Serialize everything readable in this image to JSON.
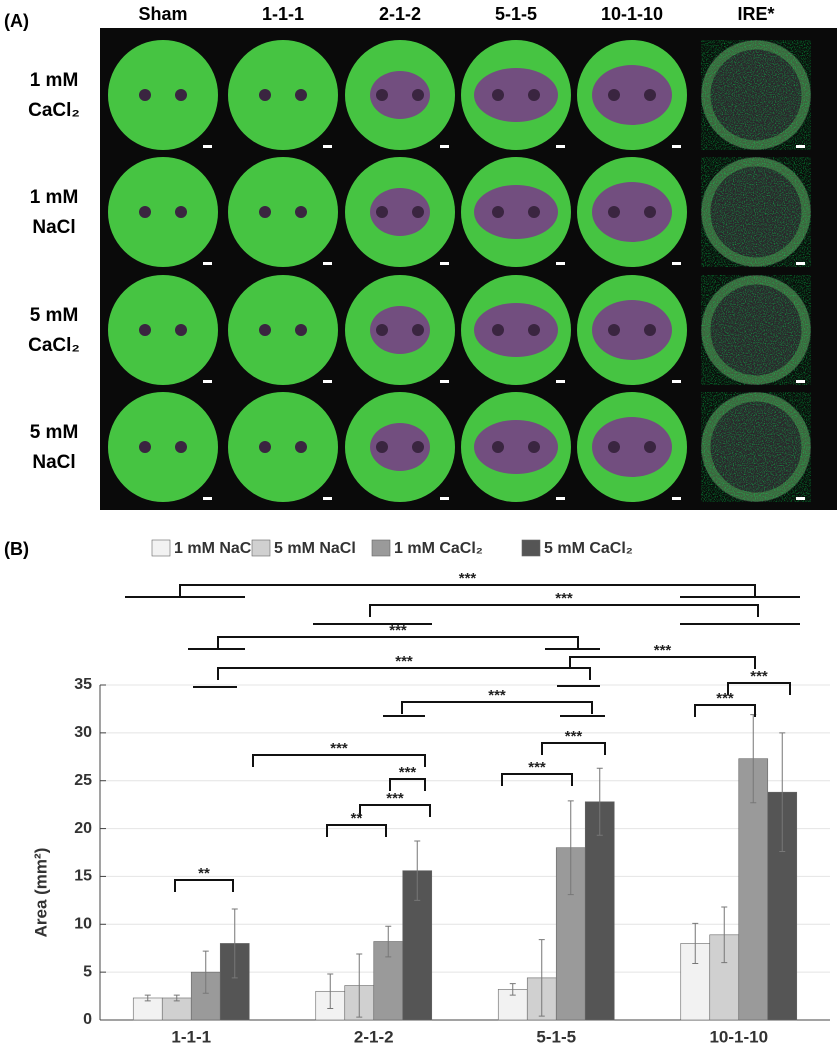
{
  "panel_a": {
    "label": "(A)",
    "columns": [
      "Sham",
      "1-1-1",
      "2-1-2",
      "5-1-5",
      "10-1-10",
      "IRE*"
    ],
    "rows": [
      [
        "1 mM",
        "CaCl₂"
      ],
      [
        "1 mM",
        "NaCl"
      ],
      [
        "5 mM",
        "CaCl₂"
      ],
      [
        "5 mM",
        "NaCl"
      ]
    ]
  },
  "chart_data": {
    "type": "bar",
    "panel_label": "(B)",
    "y_label": "Area (mm²)",
    "categories": [
      "1-1-1",
      "2-1-2",
      "5-1-5",
      "10-1-10"
    ],
    "series": [
      {
        "name": "1 mM NaCl",
        "color": "#f2f2f2",
        "values": [
          2.3,
          3.0,
          3.2,
          8.0
        ],
        "errors": [
          0.3,
          1.8,
          0.6,
          2.1
        ]
      },
      {
        "name": "5 mM NaCl",
        "color": "#d0d0d0",
        "values": [
          2.3,
          3.6,
          4.4,
          8.9
        ],
        "errors": [
          0.3,
          3.3,
          4.0,
          2.9
        ]
      },
      {
        "name": "1 mM CaCl₂",
        "color": "#9a9a9a",
        "values": [
          5.0,
          8.2,
          18.0,
          27.3
        ],
        "errors": [
          2.2,
          1.6,
          4.9,
          4.6
        ]
      },
      {
        "name": "5 mM CaCl₂",
        "color": "#555555",
        "values": [
          8.0,
          15.6,
          22.8,
          23.8
        ],
        "errors": [
          3.6,
          3.1,
          3.5,
          6.2
        ]
      }
    ],
    "ylim": [
      0,
      35
    ],
    "yticks": [
      0,
      5,
      10,
      15,
      20,
      25,
      30,
      35
    ],
    "grid": true,
    "annotations": [
      "***",
      "***",
      "***",
      "***",
      "***",
      "***",
      "***",
      "***",
      "***",
      "***",
      "***",
      "**",
      "***",
      "***",
      "**"
    ]
  }
}
